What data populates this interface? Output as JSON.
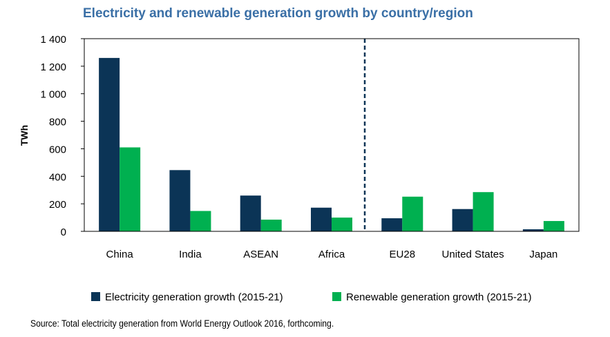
{
  "chart_data": {
    "type": "bar",
    "title": "Electricity and renewable generation growth by country/region",
    "ylabel": "TWh",
    "xlabel": "",
    "ylim": [
      0,
      1400
    ],
    "yticks": [
      0,
      200,
      400,
      600,
      800,
      1000,
      1200,
      1400
    ],
    "ytick_labels": [
      "0",
      "200",
      "400",
      "600",
      "800",
      "1 000",
      "1 200",
      "1 400"
    ],
    "categories": [
      "China",
      "India",
      "ASEAN",
      "Africa",
      "EU28",
      "United States",
      "Japan"
    ],
    "series": [
      {
        "name": "Electricity generation growth (2015-21)",
        "color": "#0b3456",
        "values": [
          1260,
          445,
          260,
          172,
          95,
          162,
          15
        ]
      },
      {
        "name": "Renewable generation growth (2015-21)",
        "color": "#00b050",
        "values": [
          610,
          148,
          85,
          100,
          252,
          285,
          75
        ]
      }
    ],
    "divider_after_category": "Africa",
    "legend_position": "bottom",
    "grid": false
  },
  "source": "Source: Total electricity generation from World Energy Outlook 2016, forthcoming."
}
